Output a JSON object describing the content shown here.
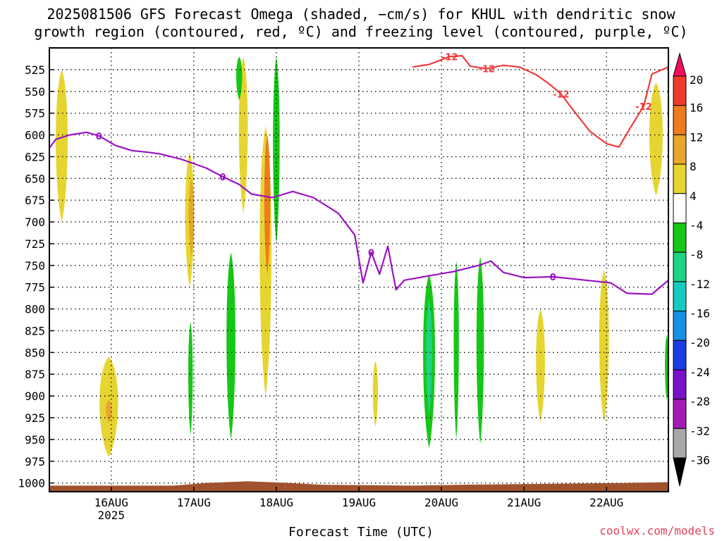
{
  "title_line1": "2025081506 GFS Forecast Omega (shaded, −cm/s) for KHUL with dendritic snow",
  "title_line2": "growth region (contoured, red, ºC) and freezing level (contoured, purple, ºC)",
  "xlabel": "Forecast Time (UTC)",
  "brand": "coolwx.com/models",
  "chart_data": {
    "type": "heatmap",
    "title": "2025081506 GFS Forecast Omega (shaded, −cm/s) for KHUL with dendritic snow growth region (contoured, red, ºC) and freezing level (contoured, purple, ºC)",
    "xlabel": "Forecast Time (UTC)",
    "ylabel": "",
    "x_range": [
      "2025-08-15T06",
      "2025-08-22T18"
    ],
    "x_ticks": [
      {
        "t": 0.75,
        "label": "16AUG",
        "sub": "2025"
      },
      {
        "t": 1.75,
        "label": "17AUG"
      },
      {
        "t": 2.75,
        "label": "18AUG"
      },
      {
        "t": 3.75,
        "label": "19AUG"
      },
      {
        "t": 4.75,
        "label": "20AUG"
      },
      {
        "t": 5.75,
        "label": "21AUG"
      },
      {
        "t": 6.75,
        "label": "22AUG"
      }
    ],
    "y_ticks": [
      525,
      550,
      575,
      600,
      625,
      650,
      675,
      700,
      725,
      750,
      775,
      800,
      825,
      850,
      875,
      900,
      925,
      950,
      975,
      1000
    ],
    "grid": true,
    "colorbar": {
      "labels": [
        "20",
        "16",
        "12",
        "8",
        "4",
        "-4",
        "-8",
        "-12",
        "-16",
        "-20",
        "-24",
        "-28",
        "-32",
        "-36"
      ],
      "colors": [
        "#f20e5b",
        "#ef3b2c",
        "#f07a1e",
        "#e8a62c",
        "#e6d531",
        "#ffffff",
        "#16c716",
        "#1ed384",
        "#18c9c2",
        "#1591e6",
        "#1b3ce0",
        "#7a10c8",
        "#a41ab4",
        "#a8a8a8",
        "#000000"
      ]
    },
    "contours": [
      {
        "name": "freezing level",
        "level_label": "0",
        "color": "#9b12c4",
        "points": [
          [
            0,
            615
          ],
          [
            0.08,
            605
          ],
          [
            0.25,
            600
          ],
          [
            0.45,
            597
          ],
          [
            0.6,
            601
          ],
          [
            0.8,
            612
          ],
          [
            1.0,
            618
          ],
          [
            1.2,
            620
          ],
          [
            1.35,
            622
          ],
          [
            1.6,
            628
          ],
          [
            1.9,
            638
          ],
          [
            2.1,
            648
          ],
          [
            2.3,
            657
          ],
          [
            2.45,
            668
          ],
          [
            2.7,
            672
          ],
          [
            2.95,
            665
          ],
          [
            3.2,
            672
          ],
          [
            3.5,
            690
          ],
          [
            3.7,
            715
          ],
          [
            3.8,
            770
          ],
          [
            3.9,
            735
          ],
          [
            4.0,
            760
          ],
          [
            4.1,
            728
          ],
          [
            4.2,
            778
          ],
          [
            4.3,
            767
          ],
          [
            4.6,
            762
          ],
          [
            4.9,
            757
          ],
          [
            5.2,
            750
          ],
          [
            5.35,
            745
          ],
          [
            5.5,
            758
          ],
          [
            5.75,
            764
          ],
          [
            6.1,
            763
          ],
          [
            6.5,
            767
          ],
          [
            6.8,
            770
          ],
          [
            7.0,
            782
          ],
          [
            7.3,
            783
          ],
          [
            7.5,
            767
          ]
        ]
      },
      {
        "name": "dendritic snow growth region",
        "level_label": "-12",
        "color": "#ef3b3b",
        "points": [
          [
            4.4,
            522
          ],
          [
            4.6,
            519
          ],
          [
            4.85,
            510
          ],
          [
            5.0,
            509
          ],
          [
            5.1,
            521
          ],
          [
            5.3,
            524
          ],
          [
            5.5,
            520
          ],
          [
            5.7,
            522
          ],
          [
            5.9,
            531
          ],
          [
            6.05,
            541
          ],
          [
            6.2,
            553
          ],
          [
            6.35,
            572
          ],
          [
            6.55,
            596
          ],
          [
            6.75,
            610
          ],
          [
            6.9,
            614
          ],
          [
            7.05,
            590
          ],
          [
            7.2,
            567
          ],
          [
            7.3,
            530
          ],
          [
            7.5,
            522
          ]
        ]
      }
    ],
    "terrain_color": "#a0522d",
    "omega_regions": [
      {
        "t": 0.72,
        "p0": 855,
        "p1": 970,
        "w": 0.25,
        "color": "#e6d531"
      },
      {
        "t": 0.72,
        "p0": 905,
        "p1": 930,
        "w": 0.08,
        "color": "#e8a62c"
      },
      {
        "t": 1.7,
        "p0": 620,
        "p1": 775,
        "w": 0.12,
        "color": "#e6d531"
      },
      {
        "t": 1.72,
        "p0": 650,
        "p1": 740,
        "w": 0.07,
        "color": "#e8a62c"
      },
      {
        "t": 1.71,
        "p0": 815,
        "p1": 945,
        "w": 0.06,
        "color": "#16c716"
      },
      {
        "t": 2.2,
        "p0": 735,
        "p1": 950,
        "w": 0.12,
        "color": "#16c716"
      },
      {
        "t": 2.35,
        "p0": 510,
        "p1": 690,
        "w": 0.12,
        "color": "#e6d531"
      },
      {
        "t": 2.3,
        "p0": 510,
        "p1": 560,
        "w": 0.08,
        "color": "#16c716"
      },
      {
        "t": 2.62,
        "p0": 590,
        "p1": 900,
        "w": 0.16,
        "color": "#e6d531"
      },
      {
        "t": 2.64,
        "p0": 600,
        "p1": 760,
        "w": 0.08,
        "color": "#f07a1e"
      },
      {
        "t": 2.75,
        "p0": 510,
        "p1": 725,
        "w": 0.09,
        "color": "#16c716"
      },
      {
        "t": 3.95,
        "p0": 860,
        "p1": 935,
        "w": 0.07,
        "color": "#e6d531"
      },
      {
        "t": 4.6,
        "p0": 760,
        "p1": 960,
        "w": 0.16,
        "color": "#16c716"
      },
      {
        "t": 4.6,
        "p0": 790,
        "p1": 920,
        "w": 0.08,
        "color": "#1ed384"
      },
      {
        "t": 4.93,
        "p0": 745,
        "p1": 950,
        "w": 0.07,
        "color": "#16c716"
      },
      {
        "t": 5.22,
        "p0": 740,
        "p1": 955,
        "w": 0.1,
        "color": "#16c716"
      },
      {
        "t": 5.95,
        "p0": 800,
        "p1": 930,
        "w": 0.12,
        "color": "#e6d531"
      },
      {
        "t": 6.72,
        "p0": 755,
        "p1": 930,
        "w": 0.13,
        "color": "#e6d531"
      },
      {
        "t": 0.15,
        "p0": 525,
        "p1": 700,
        "w": 0.16,
        "color": "#e6d531"
      },
      {
        "t": 7.35,
        "p0": 540,
        "p1": 670,
        "w": 0.18,
        "color": "#e6d531"
      },
      {
        "t": 7.48,
        "p0": 830,
        "p1": 905,
        "w": 0.05,
        "color": "#16c716"
      }
    ]
  }
}
